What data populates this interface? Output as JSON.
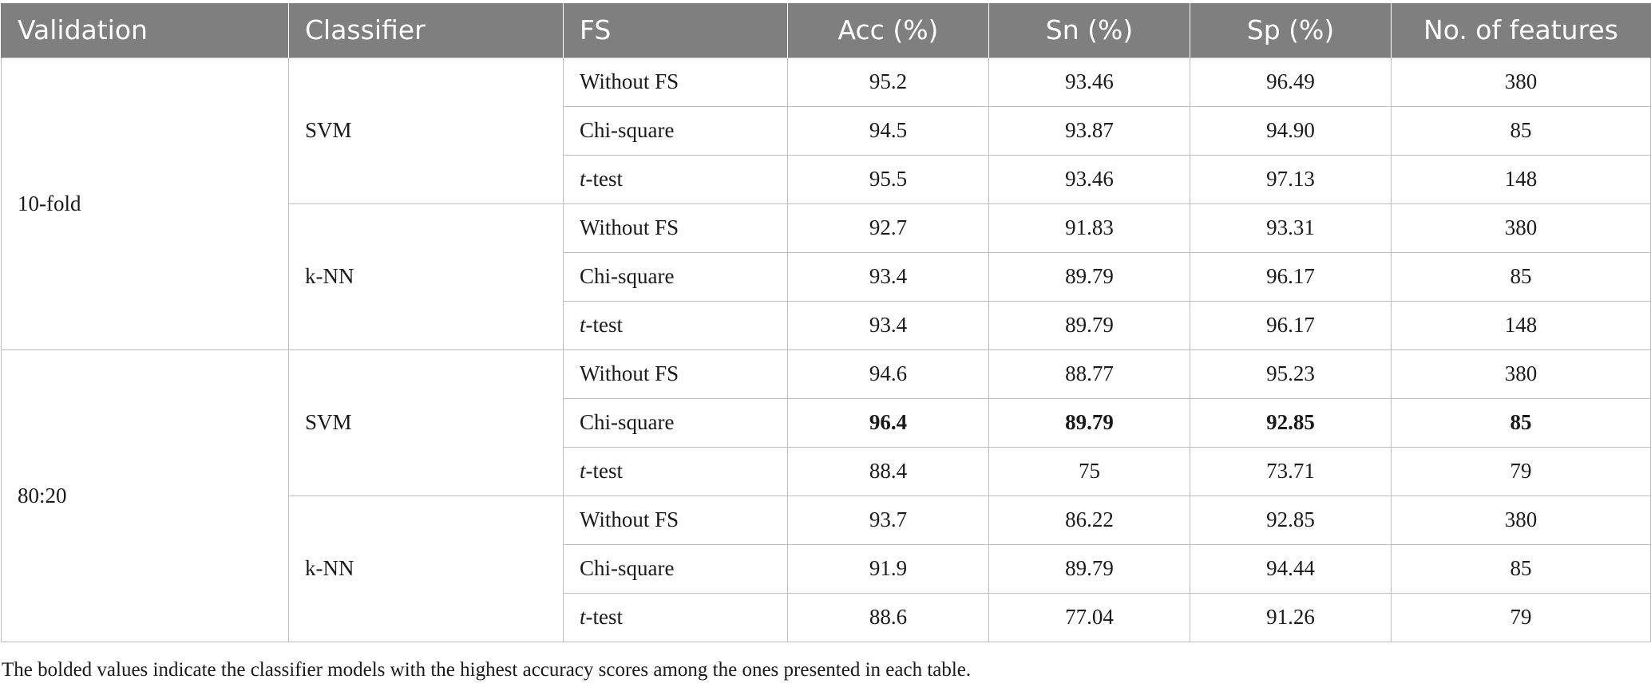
{
  "table": {
    "headers": [
      "Validation",
      "Classifier",
      "FS",
      "Acc (%)",
      "Sn (%)",
      "Sp (%)",
      "No. of features"
    ],
    "groups": [
      {
        "validation": "10-fold",
        "classifiers": [
          {
            "name": "SVM",
            "rows": [
              {
                "fs_prefix": "",
                "fs_italic": "",
                "fs_rest": "Without FS",
                "acc": "95.2",
                "sn": "93.46",
                "sp": "96.49",
                "features": "380",
                "bold": false
              },
              {
                "fs_prefix": "",
                "fs_italic": "",
                "fs_rest": "Chi-square",
                "acc": "94.5",
                "sn": "93.87",
                "sp": "94.90",
                "features": "85",
                "bold": false
              },
              {
                "fs_prefix": "",
                "fs_italic": "t",
                "fs_rest": "-test",
                "acc": "95.5",
                "sn": "93.46",
                "sp": "97.13",
                "features": "148",
                "bold": false
              }
            ]
          },
          {
            "name": "k-NN",
            "rows": [
              {
                "fs_prefix": "",
                "fs_italic": "",
                "fs_rest": "Without FS",
                "acc": "92.7",
                "sn": "91.83",
                "sp": "93.31",
                "features": "380",
                "bold": false
              },
              {
                "fs_prefix": "",
                "fs_italic": "",
                "fs_rest": "Chi-square",
                "acc": "93.4",
                "sn": "89.79",
                "sp": "96.17",
                "features": "85",
                "bold": false
              },
              {
                "fs_prefix": "",
                "fs_italic": "t",
                "fs_rest": "-test",
                "acc": "93.4",
                "sn": "89.79",
                "sp": "96.17",
                "features": "148",
                "bold": false
              }
            ]
          }
        ]
      },
      {
        "validation": "80:20",
        "classifiers": [
          {
            "name": "SVM",
            "rows": [
              {
                "fs_prefix": "",
                "fs_italic": "",
                "fs_rest": "Without FS",
                "acc": "94.6",
                "sn": "88.77",
                "sp": "95.23",
                "features": "380",
                "bold": false
              },
              {
                "fs_prefix": "",
                "fs_italic": "",
                "fs_rest": "Chi-square",
                "acc": "96.4",
                "sn": "89.79",
                "sp": "92.85",
                "features": "85",
                "bold": true
              },
              {
                "fs_prefix": "",
                "fs_italic": "t",
                "fs_rest": "-test",
                "acc": "88.4",
                "sn": "75",
                "sp": "73.71",
                "features": "79",
                "bold": false
              }
            ]
          },
          {
            "name": "k-NN",
            "rows": [
              {
                "fs_prefix": "",
                "fs_italic": "",
                "fs_rest": "Without FS",
                "acc": "93.7",
                "sn": "86.22",
                "sp": "92.85",
                "features": "380",
                "bold": false
              },
              {
                "fs_prefix": "",
                "fs_italic": "",
                "fs_rest": "Chi-square",
                "acc": "91.9",
                "sn": "89.79",
                "sp": "94.44",
                "features": "85",
                "bold": false
              },
              {
                "fs_prefix": "",
                "fs_italic": "t",
                "fs_rest": "-test",
                "acc": "88.6",
                "sn": "77.04",
                "sp": "91.26",
                "features": "79",
                "bold": false
              }
            ]
          }
        ]
      }
    ]
  },
  "footnote": "The bolded values indicate the classifier models with the highest accuracy scores among the ones presented in each table."
}
